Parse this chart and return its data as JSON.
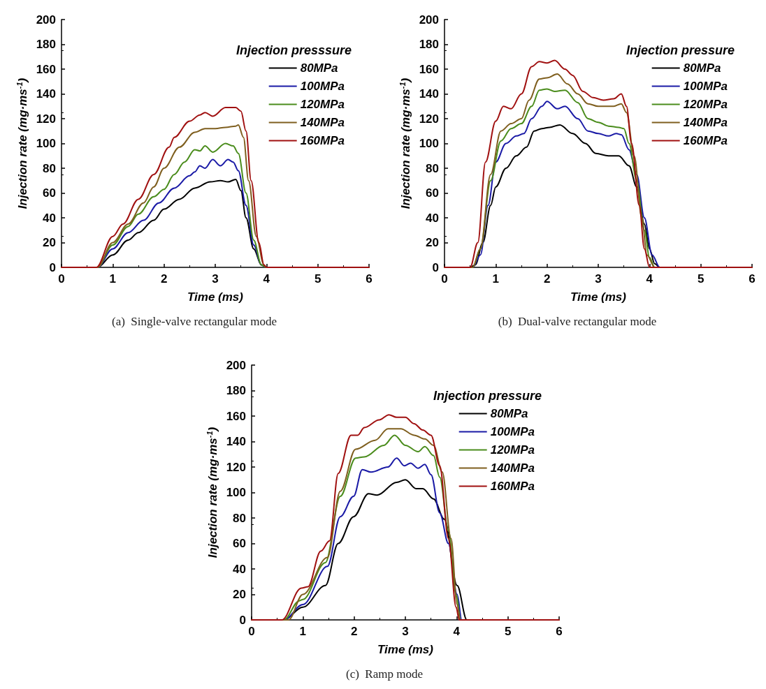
{
  "chart_data": [
    {
      "type": "line",
      "title": "(a)  Single-valve rectangular mode",
      "xlabel": "Time (ms)",
      "ylabel": "Injection rate (mg·ms$^{-1}$)",
      "legend_title": "Injection presssure",
      "legend": "top right",
      "grid": false,
      "marker": "none",
      "line_style": "solid",
      "xlim": [
        0,
        6
      ],
      "xticks": [
        0,
        1,
        2,
        3,
        4,
        5,
        6
      ],
      "ylim": [
        0,
        200
      ],
      "yticks": [
        0,
        20,
        40,
        60,
        80,
        100,
        120,
        140,
        160,
        180,
        200
      ],
      "series": [
        {
          "name": "80MPa",
          "color": "#000000",
          "x": [
            0,
            0.7,
            1.0,
            1.3,
            1.5,
            1.8,
            2.0,
            2.3,
            2.6,
            2.9,
            3.1,
            3.25,
            3.4,
            3.5,
            3.6,
            3.75,
            3.9,
            4.0,
            6
          ],
          "values": [
            0,
            0,
            10,
            22,
            28,
            38,
            47,
            55,
            64,
            69,
            70,
            69,
            71,
            62,
            40,
            15,
            2,
            0,
            0
          ]
        },
        {
          "name": "100MPa",
          "color": "#1a1aa6",
          "x": [
            0,
            0.7,
            1.0,
            1.3,
            1.6,
            1.9,
            2.2,
            2.5,
            2.6,
            2.7,
            2.8,
            2.95,
            3.1,
            3.25,
            3.35,
            3.45,
            3.6,
            3.75,
            3.9,
            4.0,
            6
          ],
          "values": [
            0,
            0,
            15,
            28,
            38,
            52,
            64,
            74,
            77,
            82,
            80,
            87,
            82,
            87,
            85,
            78,
            50,
            18,
            2,
            0,
            0
          ]
        },
        {
          "name": "120MPa",
          "color": "#4a8c1c",
          "x": [
            0,
            0.7,
            1.0,
            1.3,
            1.5,
            1.8,
            2.0,
            2.2,
            2.4,
            2.6,
            2.7,
            2.8,
            2.95,
            3.2,
            3.35,
            3.45,
            3.6,
            3.75,
            3.9,
            4.0,
            6
          ],
          "values": [
            0,
            0,
            18,
            33,
            43,
            57,
            63,
            75,
            85,
            95,
            94,
            98,
            93,
            100,
            98,
            92,
            60,
            22,
            2,
            0,
            0
          ]
        },
        {
          "name": "140MPa",
          "color": "#7f5f1f",
          "x": [
            0,
            0.7,
            1.0,
            1.3,
            1.6,
            1.8,
            2.0,
            2.3,
            2.6,
            2.8,
            3.0,
            3.2,
            3.4,
            3.45,
            3.55,
            3.65,
            3.8,
            3.95,
            4.0,
            6
          ],
          "values": [
            0,
            0,
            20,
            35,
            52,
            65,
            80,
            97,
            109,
            112,
            112,
            113,
            114,
            115,
            105,
            70,
            25,
            2,
            0,
            0
          ]
        },
        {
          "name": "160MPa",
          "color": "#a01010",
          "x": [
            0,
            0.68,
            1.0,
            1.2,
            1.5,
            1.8,
            2.1,
            2.2,
            2.5,
            2.7,
            2.8,
            2.95,
            3.2,
            3.4,
            3.5,
            3.6,
            3.7,
            3.85,
            3.95,
            4.0,
            6
          ],
          "values": [
            0,
            0,
            25,
            35,
            55,
            75,
            97,
            105,
            118,
            123,
            125,
            122,
            129,
            129,
            126,
            110,
            70,
            20,
            2,
            0,
            0
          ]
        }
      ]
    },
    {
      "type": "line",
      "title": "(b)  Dual-valve rectangular mode",
      "xlabel": "Time (ms)",
      "ylabel": "Injection rate (mg·ms$^{-1}$)",
      "legend_title": "Injection pressure",
      "legend": "top right",
      "grid": false,
      "marker": "none",
      "line_style": "solid",
      "xlim": [
        0,
        6
      ],
      "xticks": [
        0,
        1,
        2,
        3,
        4,
        5,
        6
      ],
      "ylim": [
        0,
        200
      ],
      "yticks": [
        0,
        20,
        40,
        60,
        80,
        100,
        120,
        140,
        160,
        180,
        200
      ],
      "series": [
        {
          "name": "80MPa",
          "color": "#000000",
          "x": [
            0,
            0.5,
            0.6,
            0.75,
            0.9,
            1.0,
            1.2,
            1.4,
            1.6,
            1.75,
            1.9,
            2.05,
            2.25,
            2.5,
            2.75,
            2.95,
            3.2,
            3.4,
            3.6,
            3.75,
            3.9,
            4.0,
            4.1,
            4.2,
            6
          ],
          "values": [
            0,
            0,
            2,
            20,
            50,
            65,
            80,
            90,
            97,
            110,
            112,
            113,
            115,
            108,
            100,
            92,
            90,
            90,
            82,
            65,
            35,
            15,
            3,
            0,
            0
          ]
        },
        {
          "name": "100MPa",
          "color": "#1a1aa6",
          "x": [
            0,
            0.55,
            0.7,
            0.85,
            1.0,
            1.2,
            1.4,
            1.55,
            1.7,
            1.9,
            2.0,
            2.2,
            2.35,
            2.6,
            2.8,
            3.0,
            3.2,
            3.35,
            3.45,
            3.6,
            3.75,
            3.9,
            4.05,
            4.2,
            6
          ],
          "values": [
            0,
            0,
            10,
            50,
            85,
            100,
            106,
            108,
            120,
            130,
            134,
            128,
            130,
            120,
            110,
            108,
            106,
            108,
            107,
            95,
            75,
            40,
            10,
            0,
            0
          ]
        },
        {
          "name": "120MPa",
          "color": "#4a8c1c",
          "x": [
            0,
            0.55,
            0.7,
            0.9,
            1.1,
            1.3,
            1.5,
            1.7,
            1.85,
            2.0,
            2.15,
            2.35,
            2.6,
            2.8,
            3.0,
            3.2,
            3.4,
            3.5,
            3.6,
            3.75,
            3.9,
            4.0,
            4.1,
            6
          ],
          "values": [
            0,
            0,
            15,
            70,
            102,
            112,
            116,
            130,
            143,
            144,
            142,
            143,
            133,
            120,
            117,
            114,
            113,
            112,
            100,
            70,
            30,
            8,
            0,
            0
          ]
        },
        {
          "name": "140MPa",
          "color": "#7f5f1f",
          "x": [
            0,
            0.55,
            0.7,
            0.9,
            1.1,
            1.3,
            1.5,
            1.65,
            1.85,
            2.0,
            2.2,
            2.4,
            2.6,
            2.8,
            3.0,
            3.3,
            3.45,
            3.55,
            3.7,
            3.85,
            3.95,
            4.1,
            6
          ],
          "values": [
            0,
            0,
            15,
            75,
            110,
            116,
            120,
            135,
            152,
            153,
            156,
            148,
            140,
            132,
            130,
            130,
            132,
            125,
            90,
            40,
            10,
            0,
            0
          ]
        },
        {
          "name": "160MPa",
          "color": "#a01010",
          "x": [
            0,
            0.5,
            0.65,
            0.8,
            1.0,
            1.15,
            1.3,
            1.5,
            1.7,
            1.85,
            2.0,
            2.15,
            2.35,
            2.5,
            2.7,
            2.9,
            3.1,
            3.3,
            3.45,
            3.55,
            3.65,
            3.8,
            3.9,
            4.0,
            6
          ],
          "values": [
            0,
            0,
            20,
            85,
            118,
            130,
            128,
            140,
            162,
            166,
            165,
            167,
            160,
            155,
            142,
            137,
            135,
            136,
            140,
            130,
            100,
            50,
            15,
            0,
            0
          ]
        }
      ]
    },
    {
      "type": "line",
      "title": "(c)  Ramp mode",
      "xlabel": "Time (ms)",
      "ylabel": "Injection rate (mg·ms$^{-1}$)",
      "legend_title": "Injection pressure",
      "legend": "top right",
      "grid": false,
      "marker": "none",
      "line_style": "solid",
      "xlim": [
        0,
        6
      ],
      "xticks": [
        0,
        1,
        2,
        3,
        4,
        5,
        6
      ],
      "ylim": [
        0,
        200
      ],
      "yticks": [
        0,
        20,
        40,
        60,
        80,
        100,
        120,
        140,
        160,
        180,
        200
      ],
      "series": [
        {
          "name": "80MPa",
          "color": "#000000",
          "x": [
            0,
            0.63,
            1.0,
            1.44,
            1.69,
            1.99,
            2.28,
            2.45,
            2.83,
            3.0,
            3.21,
            3.34,
            3.55,
            3.76,
            4.01,
            4.2,
            6
          ],
          "values": [
            0,
            0,
            10,
            27,
            60,
            81,
            99,
            98,
            108,
            110,
            103,
            103,
            95,
            79,
            27,
            0,
            0
          ]
        },
        {
          "name": "100MPa",
          "color": "#1a1aa6",
          "x": [
            0,
            0.63,
            1.0,
            1.48,
            1.73,
            1.99,
            2.16,
            2.33,
            2.66,
            2.83,
            2.98,
            3.1,
            3.25,
            3.38,
            3.5,
            3.67,
            3.84,
            4.01,
            4.1,
            6
          ],
          "values": [
            0,
            0,
            12,
            42,
            81,
            97,
            118,
            116,
            120,
            127,
            121,
            123,
            119,
            122,
            114,
            84,
            60,
            20,
            0,
            0
          ]
        },
        {
          "name": "120MPa",
          "color": "#4a8c1c",
          "x": [
            0,
            0.63,
            0.93,
            1.0,
            1.44,
            1.73,
            2.03,
            2.2,
            2.58,
            2.79,
            3.0,
            3.25,
            3.38,
            3.55,
            3.67,
            3.84,
            3.99,
            4.08,
            6
          ],
          "values": [
            0,
            0,
            15,
            16,
            45,
            97,
            127,
            128,
            137,
            145,
            137,
            132,
            136,
            129,
            112,
            70,
            20,
            0,
            0
          ]
        },
        {
          "name": "140MPa",
          "color": "#7f5f1f",
          "x": [
            0,
            0.72,
            1.0,
            1.48,
            1.73,
            2.03,
            2.41,
            2.66,
            2.91,
            3.17,
            3.38,
            3.55,
            3.72,
            3.89,
            4.01,
            4.07,
            6
          ],
          "values": [
            0,
            0,
            20,
            49,
            101,
            134,
            141,
            150,
            150,
            145,
            142,
            137,
            116,
            64,
            12,
            0,
            0
          ]
        },
        {
          "name": "160MPa",
          "color": "#a01010",
          "x": [
            0,
            0.59,
            0.97,
            1.1,
            1.35,
            1.52,
            1.69,
            1.94,
            2.07,
            2.2,
            2.49,
            2.68,
            2.83,
            3.0,
            3.17,
            3.34,
            3.5,
            3.67,
            3.84,
            3.99,
            4.05,
            6
          ],
          "values": [
            0,
            0,
            25,
            26,
            54,
            62,
            115,
            145,
            145,
            151,
            157,
            161,
            159,
            159,
            154,
            149,
            145,
            121,
            64,
            10,
            0,
            0
          ]
        }
      ]
    }
  ]
}
